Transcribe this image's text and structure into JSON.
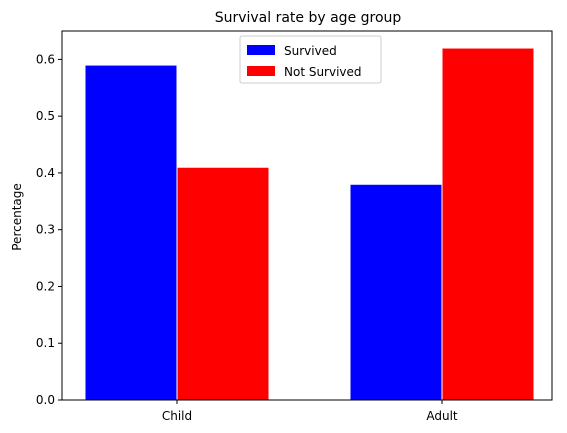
{
  "chart_data": {
    "type": "bar",
    "title": "Survival rate by age group",
    "xlabel": "",
    "ylabel": "Percentage",
    "categories": [
      "Child",
      "Adult"
    ],
    "series": [
      {
        "name": "Survived",
        "values": [
          0.59,
          0.38
        ],
        "color": "#0000ff"
      },
      {
        "name": "Not Survived",
        "values": [
          0.41,
          0.62
        ],
        "color": "#ff0000"
      }
    ],
    "ylim": [
      0,
      0.65
    ],
    "yticks": [
      "0.0",
      "0.1",
      "0.2",
      "0.3",
      "0.4",
      "0.5",
      "0.6"
    ],
    "grid": false,
    "legend_position": "top-center"
  }
}
